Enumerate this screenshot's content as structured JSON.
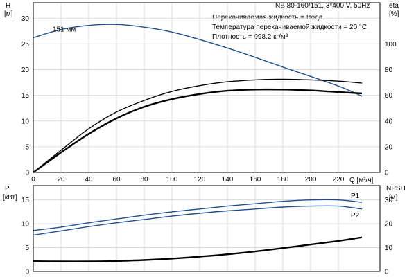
{
  "header": {
    "pump_label": "NB 80-160/151, 3*400 V, 50Hz",
    "info_lines": [
      "Перекачиваемая жидкость = Вода",
      "Температура перекачиваемой жидкости = 20 °C",
      "Плотность = 998.2 кг/м³"
    ]
  },
  "chart_data": [
    {
      "type": "line",
      "name": "head-efficiency",
      "x_axis": {
        "label": "Q [м³/ч]",
        "ticks": [
          "0",
          "20",
          "40",
          "60",
          "80",
          "100",
          "120",
          "140",
          "160",
          "180",
          "200",
          "220"
        ],
        "range": [
          0,
          250
        ]
      },
      "y_axis_left": {
        "label_top": "H",
        "label_unit": "[м]",
        "ticks": [
          "0",
          "5",
          "10",
          "15",
          "20",
          "25",
          "30"
        ],
        "range": [
          0,
          33
        ]
      },
      "y_axis_right": {
        "label_top": "eta",
        "label_unit": "[%]",
        "ticks": [
          "0",
          "20",
          "40",
          "60",
          "80",
          "100"
        ],
        "range": [
          0,
          132
        ]
      },
      "grid": true,
      "series": [
        {
          "name": "151 мм",
          "axis": "left",
          "color": "#1f4e8c",
          "x": [
            0,
            20,
            40,
            55,
            70,
            100,
            140,
            180,
            220,
            237
          ],
          "y": [
            26.2,
            27.8,
            28.6,
            28.8,
            28.6,
            27.3,
            24.2,
            20.5,
            16.8,
            14.8
          ]
        },
        {
          "axis": "right",
          "color": "#000000",
          "x": [
            0,
            22,
            40,
            60,
            80,
            100,
            120,
            140,
            160,
            180,
            200,
            220,
            237
          ],
          "y": [
            0,
            17,
            30,
            42,
            51,
            57,
            61,
            63.5,
            64.5,
            64.5,
            63.8,
            62.5,
            61.5
          ]
        },
        {
          "axis": "right",
          "color": "#000000",
          "x": [
            0,
            22,
            40,
            60,
            80,
            100,
            120,
            140,
            160,
            180,
            200,
            220,
            237
          ],
          "y": [
            0,
            19,
            34,
            47,
            56,
            63,
            67.5,
            70.5,
            72,
            72.5,
            72,
            71,
            69.5
          ]
        }
      ]
    },
    {
      "type": "line",
      "name": "power-npsh",
      "y_axis_left": {
        "label_top": "P",
        "label_unit": "[кВт]",
        "ticks": [
          "0",
          "5",
          "10",
          "15"
        ],
        "range": [
          0,
          18
        ]
      },
      "y_axis_right": {
        "label_top": "NPSH",
        "label_unit": "[м]",
        "ticks": [
          "0",
          "10",
          "20",
          "30"
        ],
        "range": [
          0,
          36
        ]
      },
      "x_range": [
        0,
        250
      ],
      "grid": true,
      "series": [
        {
          "name": "P1",
          "axis": "left",
          "color": "#1f4e8c",
          "x": [
            0,
            20,
            40,
            60,
            80,
            100,
            120,
            140,
            160,
            180,
            200,
            220,
            237
          ],
          "y": [
            8.6,
            9.3,
            10.2,
            11.0,
            11.8,
            12.5,
            13.1,
            13.7,
            14.2,
            14.7,
            15.0,
            15.0,
            14.5
          ]
        },
        {
          "name": "P2",
          "axis": "left",
          "color": "#1f4e8c",
          "x": [
            0,
            20,
            40,
            60,
            80,
            100,
            120,
            140,
            160,
            180,
            200,
            220,
            237
          ],
          "y": [
            7.6,
            8.5,
            9.4,
            10.2,
            10.9,
            11.6,
            12.2,
            12.7,
            13.1,
            13.5,
            13.7,
            13.7,
            13.1
          ]
        },
        {
          "axis": "right",
          "color": "#000000",
          "x": [
            0,
            20,
            40,
            60,
            80,
            100,
            120,
            140,
            160,
            180,
            200,
            220,
            237
          ],
          "y": [
            4.3,
            4.2,
            4.2,
            4.4,
            4.8,
            5.4,
            6.2,
            7.2,
            8.4,
            9.8,
            11.3,
            12.8,
            14.3
          ]
        }
      ]
    }
  ]
}
